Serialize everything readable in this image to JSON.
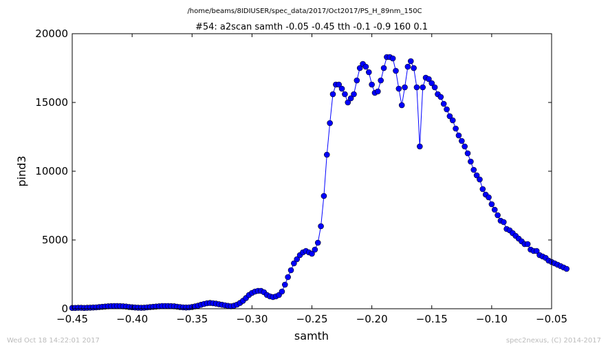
{
  "chart_data": {
    "type": "line",
    "suptitle": "/home/beams/8IDIUSER/spec_data/2017/Oct2017/PS_H_89nm_150C",
    "title": "#54: a2scan  samth -0.05 -0.45  tth -0.1 -0.9  160 0.1",
    "xlabel": "samth",
    "ylabel": "pind3",
    "xlim": [
      -0.45,
      -0.05
    ],
    "ylim": [
      0,
      20000
    ],
    "xticks": [
      -0.45,
      -0.4,
      -0.35,
      -0.3,
      -0.25,
      -0.2,
      -0.15,
      -0.1,
      -0.05
    ],
    "xtick_labels": [
      "−0.45",
      "−0.40",
      "−0.35",
      "−0.30",
      "−0.25",
      "−0.20",
      "−0.15",
      "−0.10",
      "−0.05"
    ],
    "yticks": [
      0,
      5000,
      10000,
      15000,
      20000
    ],
    "ytick_labels": [
      "0",
      "5000",
      "10000",
      "15000",
      "20000"
    ],
    "grid": false,
    "series_color": "#0000ff",
    "marker_color": "#0000ff",
    "series": [
      {
        "x_start": -0.45,
        "x_step": 0.0025,
        "y": [
          60,
          60,
          70,
          70,
          60,
          70,
          80,
          90,
          100,
          120,
          140,
          160,
          180,
          190,
          200,
          200,
          190,
          180,
          160,
          130,
          110,
          90,
          80,
          70,
          80,
          100,
          120,
          140,
          160,
          180,
          200,
          200,
          200,
          190,
          180,
          150,
          120,
          100,
          90,
          100,
          130,
          170,
          220,
          290,
          350,
          400,
          420,
          400,
          370,
          330,
          290,
          250,
          210,
          180,
          220,
          300,
          420,
          580,
          780,
          1000,
          1150,
          1250,
          1300,
          1300,
          1200,
          1000,
          900,
          850,
          900,
          1000,
          1250,
          1750,
          2300,
          2800,
          3300,
          3600,
          3900,
          4100,
          4200,
          4100,
          4000,
          4300,
          4800,
          6000,
          8200,
          11200,
          13500,
          15600,
          16300,
          16300,
          16000,
          15600,
          15000,
          15300,
          15600,
          16600,
          17500,
          17800,
          17600,
          17200,
          16300,
          15700,
          15800,
          16600,
          17500,
          18300,
          18300,
          18200,
          17300,
          16000,
          14800,
          16100,
          17600,
          18000,
          17500,
          16100,
          11800,
          16100,
          16800,
          16700,
          16400,
          16100,
          15600,
          15400,
          14900,
          14500,
          14000,
          13700,
          13100,
          12600,
          12200,
          11800,
          11300,
          10700,
          10100,
          9700,
          9400,
          8700,
          8300,
          8100,
          7600,
          7200,
          6800,
          6400,
          6300,
          5800,
          5700,
          5500,
          5300,
          5100,
          4900,
          4700,
          4700,
          4300,
          4200,
          4200,
          3900,
          3800,
          3700,
          3500,
          3400,
          3300,
          3200,
          3100,
          3000,
          2900
        ]
      }
    ]
  },
  "footer": {
    "timestamp": "Wed Oct 18 14:22:01 2017",
    "credit": "spec2nexus, (C) 2014-2017"
  }
}
